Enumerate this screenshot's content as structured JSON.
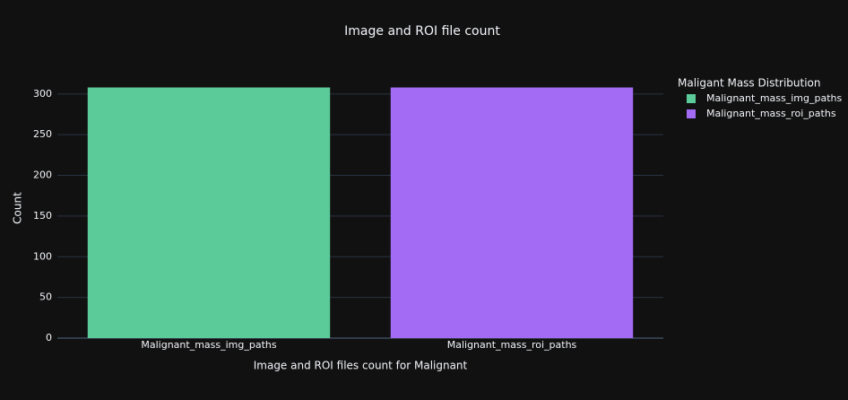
{
  "chart_data": {
    "type": "bar",
    "title": "Image and ROI file count",
    "x_label": "Image and ROI files count for Malignant",
    "y_label": "Count",
    "legend_title": "Maligant Mass Distribution",
    "legend_position": "right",
    "categories": [
      "Malignant_mass_img_paths",
      "Malignant_mass_roi_paths"
    ],
    "values": [
      308,
      308
    ],
    "colors": [
      "#5ccb9a",
      "#a36af3"
    ],
    "ylim": [
      0,
      324
    ],
    "yticks": [
      0,
      50,
      100,
      150,
      200,
      250,
      300
    ],
    "grid": true
  }
}
